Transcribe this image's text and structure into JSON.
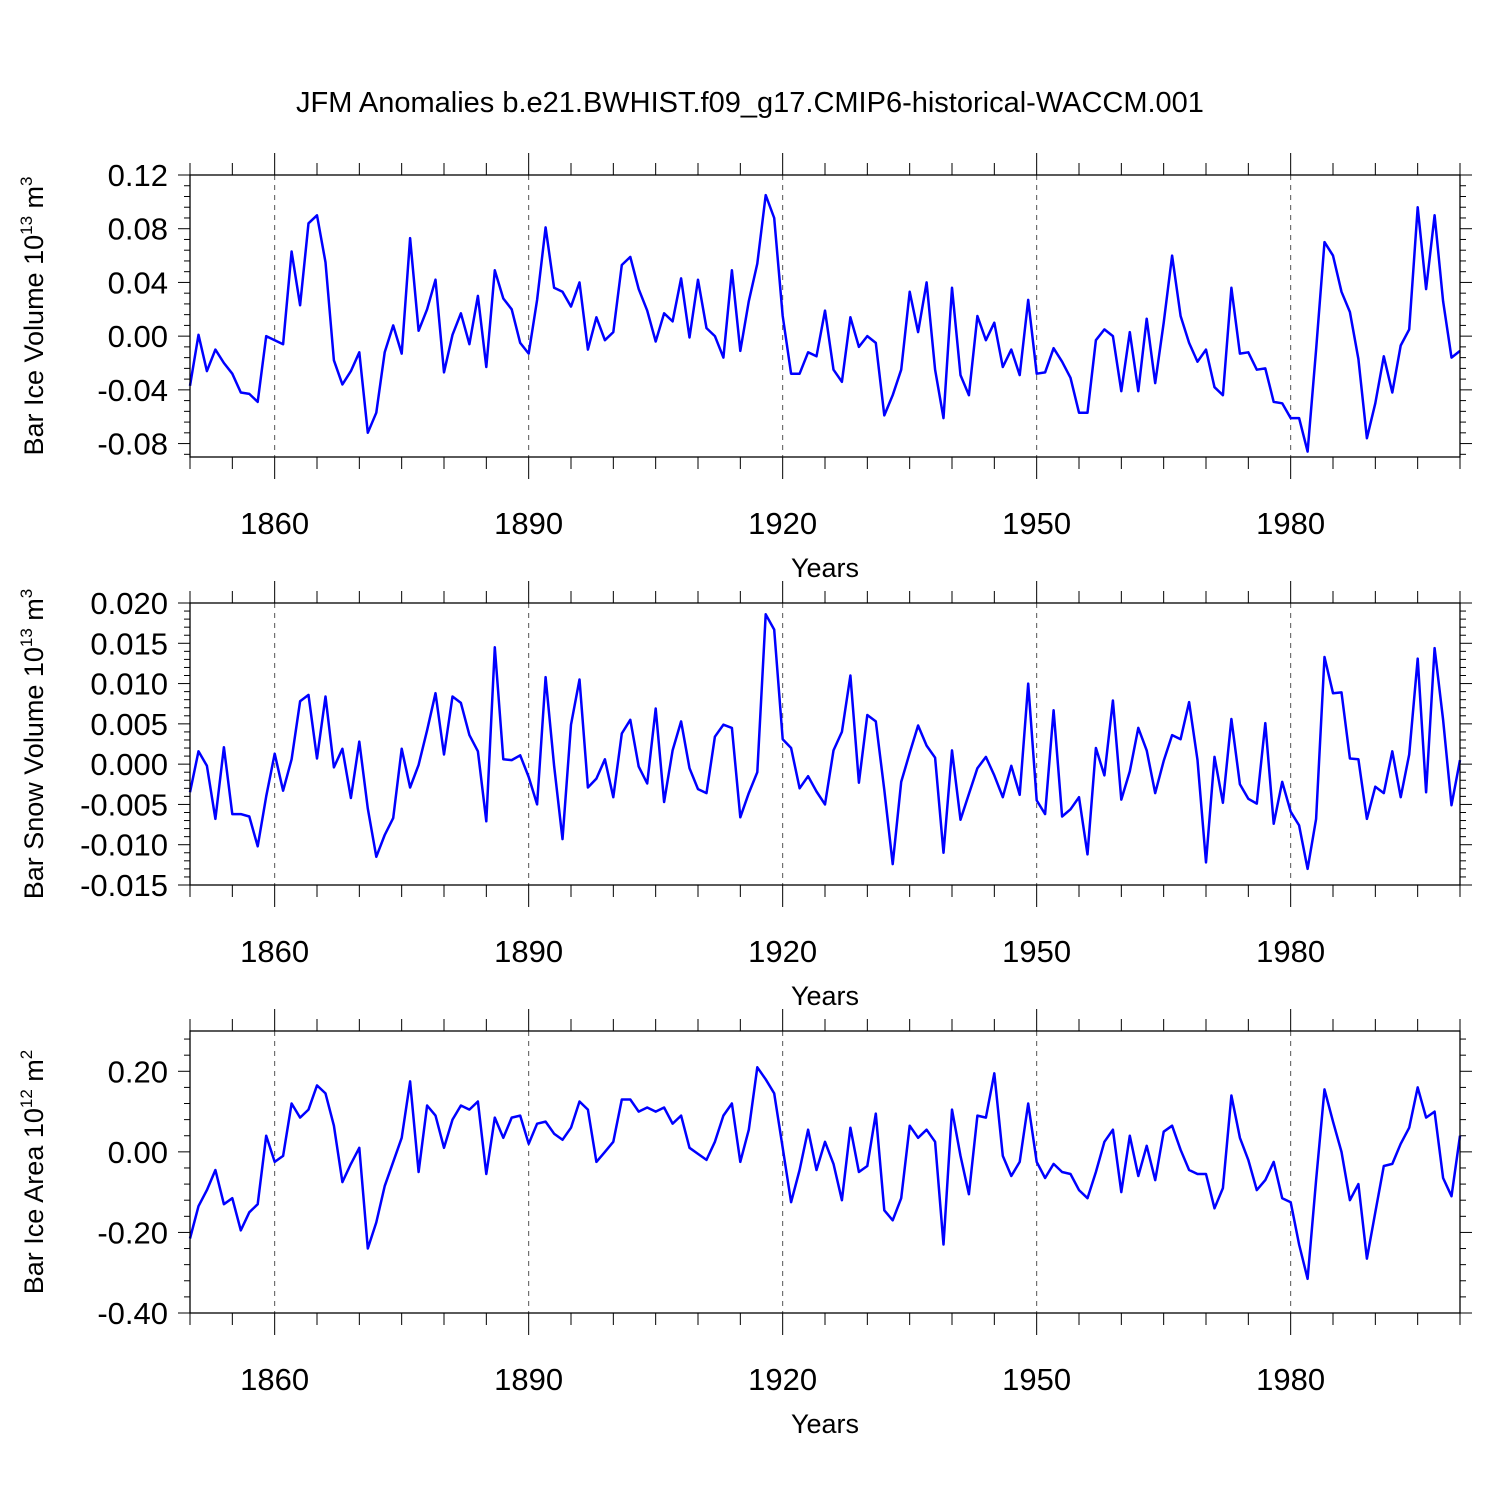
{
  "title": "JFM Anomalies b.e21.BWHIST.f09_g17.CMIP6-historical-WACCM.001",
  "line_color": "#0000ff",
  "chart_data": [
    {
      "type": "line",
      "ylabel_main": "Bar Ice Volume 10",
      "ylabel_exp": "13",
      "ylabel_unit": " m",
      "ylabel_unit_exp": "3",
      "xlabel": "Years",
      "xlim": [
        1850,
        2000
      ],
      "ylim": [
        -0.09,
        0.12
      ],
      "x_start": 1850,
      "yticks": [
        -0.08,
        -0.04,
        0.0,
        0.04,
        0.08,
        0.12
      ],
      "ytick_labels": [
        "-0.08",
        "-0.04",
        "0.00",
        "0.04",
        "0.08",
        "0.12"
      ],
      "xticks": [
        1860,
        1890,
        1920,
        1950,
        1980
      ],
      "xtick_labels": [
        "1860",
        "1890",
        "1920",
        "1950",
        "1980"
      ],
      "values": [
        -0.037,
        0.001,
        -0.026,
        -0.01,
        -0.02,
        -0.028,
        -0.042,
        -0.043,
        -0.049,
        0.0,
        -0.003,
        -0.006,
        0.063,
        0.023,
        0.084,
        0.09,
        0.055,
        -0.018,
        -0.036,
        -0.026,
        -0.012,
        -0.072,
        -0.057,
        -0.012,
        0.008,
        -0.013,
        0.073,
        0.004,
        0.02,
        0.042,
        -0.027,
        0.001,
        0.017,
        -0.006,
        0.03,
        -0.023,
        0.049,
        0.028,
        0.02,
        -0.005,
        -0.013,
        0.027,
        0.081,
        0.036,
        0.033,
        0.022,
        0.04,
        -0.01,
        0.014,
        -0.003,
        0.003,
        0.053,
        0.059,
        0.035,
        0.019,
        -0.004,
        0.017,
        0.011,
        0.043,
        -0.001,
        0.042,
        0.006,
        0.0,
        -0.016,
        0.049,
        -0.011,
        0.026,
        0.054,
        0.105,
        0.088,
        0.015,
        -0.028,
        -0.028,
        -0.012,
        -0.015,
        0.019,
        -0.025,
        -0.034,
        0.014,
        -0.008,
        0.0,
        -0.005,
        -0.059,
        -0.044,
        -0.025,
        0.033,
        0.003,
        0.04,
        -0.025,
        -0.061,
        0.036,
        -0.029,
        -0.044,
        0.015,
        -0.003,
        0.01,
        -0.023,
        -0.01,
        -0.029,
        0.027,
        -0.028,
        -0.027,
        -0.009,
        -0.019,
        -0.031,
        -0.057,
        -0.057,
        -0.003,
        0.005,
        0.0,
        -0.041,
        0.003,
        -0.041,
        0.013,
        -0.035,
        0.01,
        0.06,
        0.015,
        -0.005,
        -0.019,
        -0.01,
        -0.038,
        -0.044,
        0.036,
        -0.013,
        -0.012,
        -0.025,
        -0.024,
        -0.049,
        -0.05,
        -0.061,
        -0.061,
        -0.086,
        -0.01,
        0.07,
        0.06,
        0.033,
        0.018,
        -0.017,
        -0.076,
        -0.05,
        -0.015,
        -0.042,
        -0.007,
        0.005,
        0.096,
        0.035,
        0.09,
        0.026,
        -0.016,
        -0.011
      ]
    },
    {
      "type": "line",
      "ylabel_main": "Bar Snow Volume 10",
      "ylabel_exp": "13",
      "ylabel_unit": " m",
      "ylabel_unit_exp": "3",
      "xlabel": "Years",
      "xlim": [
        1850,
        2000
      ],
      "ylim": [
        -0.015,
        0.02
      ],
      "x_start": 1850,
      "yticks": [
        -0.015,
        -0.01,
        -0.005,
        0.0,
        0.005,
        0.01,
        0.015,
        0.02
      ],
      "ytick_labels": [
        "-0.015",
        "-0.010",
        "-0.005",
        "0.000",
        "0.005",
        "0.010",
        "0.015",
        "0.020"
      ],
      "xticks": [
        1860,
        1890,
        1920,
        1950,
        1980
      ],
      "xtick_labels": [
        "1860",
        "1890",
        "1920",
        "1950",
        "1980"
      ],
      "values": [
        -0.0035,
        0.0016,
        -0.0002,
        -0.0068,
        0.0021,
        -0.0062,
        -0.0062,
        -0.0065,
        -0.0102,
        -0.004,
        0.0013,
        -0.0033,
        0.0006,
        0.0078,
        0.0086,
        0.0007,
        0.0084,
        -0.0004,
        0.0019,
        -0.0042,
        0.0028,
        -0.0055,
        -0.0115,
        -0.0088,
        -0.0067,
        0.0019,
        -0.0029,
        -0.0001,
        0.0042,
        0.0088,
        0.0012,
        0.0084,
        0.0076,
        0.0036,
        0.0016,
        -0.0071,
        0.0145,
        0.0006,
        0.0005,
        0.0011,
        -0.0016,
        -0.005,
        0.0108,
        -0.0002,
        -0.0093,
        0.0049,
        0.0105,
        -0.0029,
        -0.0018,
        0.0006,
        -0.0041,
        0.0038,
        0.0055,
        -0.0003,
        -0.0024,
        0.0069,
        -0.0047,
        0.0017,
        0.0053,
        -0.0005,
        -0.0031,
        -0.0036,
        0.0034,
        0.0049,
        0.0045,
        -0.0066,
        -0.0036,
        -0.001,
        0.0186,
        0.0167,
        0.0031,
        0.002,
        -0.003,
        -0.0015,
        -0.0034,
        -0.005,
        0.0017,
        0.004,
        0.011,
        -0.0023,
        0.0061,
        0.0053,
        -0.0032,
        -0.0124,
        -0.0022,
        0.0014,
        0.0048,
        0.0023,
        0.0008,
        -0.011,
        0.0017,
        -0.0069,
        -0.0037,
        -0.0005,
        0.0009,
        -0.0014,
        -0.0041,
        -0.0002,
        -0.0038,
        0.01,
        -0.0045,
        -0.0062,
        0.0067,
        -0.0065,
        -0.0056,
        -0.0041,
        -0.0112,
        0.002,
        -0.0014,
        0.0079,
        -0.0044,
        -0.0009,
        0.0045,
        0.0017,
        -0.0036,
        0.0004,
        0.0036,
        0.0031,
        0.0077,
        0.0005,
        -0.0122,
        0.0009,
        -0.0048,
        0.0056,
        -0.0025,
        -0.0043,
        -0.0049,
        0.0051,
        -0.0074,
        -0.0022,
        -0.0059,
        -0.0076,
        -0.013,
        -0.0068,
        0.0133,
        0.0088,
        0.0089,
        0.0007,
        0.0006,
        -0.0068,
        -0.0028,
        -0.0036,
        0.0016,
        -0.0041,
        0.0012,
        0.0131,
        -0.0035,
        0.0144,
        0.0055,
        -0.0051,
        0.0005
      ]
    },
    {
      "type": "line",
      "ylabel_main": "Bar Ice Area 10",
      "ylabel_exp": "12",
      "ylabel_unit": " m",
      "ylabel_unit_exp": "2",
      "xlabel": "Years",
      "xlim": [
        1850,
        2000
      ],
      "ylim": [
        -0.4,
        0.3
      ],
      "x_start": 1850,
      "yticks": [
        -0.4,
        -0.2,
        0.0,
        0.2
      ],
      "ytick_labels": [
        "-0.40",
        "-0.20",
        "0.00",
        "0.20"
      ],
      "xticks": [
        1860,
        1890,
        1920,
        1950,
        1980
      ],
      "xtick_labels": [
        "1860",
        "1890",
        "1920",
        "1950",
        "1980"
      ],
      "values": [
        -0.215,
        -0.135,
        -0.095,
        -0.045,
        -0.13,
        -0.115,
        -0.195,
        -0.15,
        -0.13,
        0.04,
        -0.025,
        -0.01,
        0.12,
        0.085,
        0.105,
        0.165,
        0.145,
        0.065,
        -0.075,
        -0.03,
        0.01,
        -0.24,
        -0.175,
        -0.085,
        -0.025,
        0.035,
        0.175,
        -0.05,
        0.115,
        0.09,
        0.01,
        0.08,
        0.115,
        0.105,
        0.125,
        -0.055,
        0.085,
        0.035,
        0.085,
        0.09,
        0.02,
        0.07,
        0.075,
        0.045,
        0.03,
        0.06,
        0.125,
        0.105,
        -0.025,
        0.0,
        0.025,
        0.13,
        0.13,
        0.1,
        0.11,
        0.1,
        0.11,
        0.07,
        0.09,
        0.01,
        -0.005,
        -0.02,
        0.025,
        0.09,
        0.12,
        -0.025,
        0.055,
        0.21,
        0.18,
        0.145,
        0.01,
        -0.125,
        -0.045,
        0.055,
        -0.045,
        0.025,
        -0.03,
        -0.12,
        0.06,
        -0.05,
        -0.035,
        0.095,
        -0.145,
        -0.17,
        -0.115,
        0.065,
        0.035,
        0.055,
        0.025,
        -0.23,
        0.105,
        -0.01,
        -0.105,
        0.09,
        0.085,
        0.195,
        -0.01,
        -0.06,
        -0.025,
        0.12,
        -0.025,
        -0.065,
        -0.03,
        -0.05,
        -0.055,
        -0.095,
        -0.115,
        -0.05,
        0.025,
        0.055,
        -0.1,
        0.04,
        -0.06,
        0.015,
        -0.07,
        0.05,
        0.065,
        0.005,
        -0.045,
        -0.055,
        -0.055,
        -0.14,
        -0.09,
        0.14,
        0.035,
        -0.02,
        -0.095,
        -0.07,
        -0.025,
        -0.115,
        -0.125,
        -0.23,
        -0.315,
        -0.07,
        0.155,
        0.075,
        0.0,
        -0.12,
        -0.08,
        -0.265,
        -0.15,
        -0.035,
        -0.03,
        0.02,
        0.06,
        0.16,
        0.085,
        0.1,
        -0.065,
        -0.11,
        0.04
      ]
    }
  ]
}
